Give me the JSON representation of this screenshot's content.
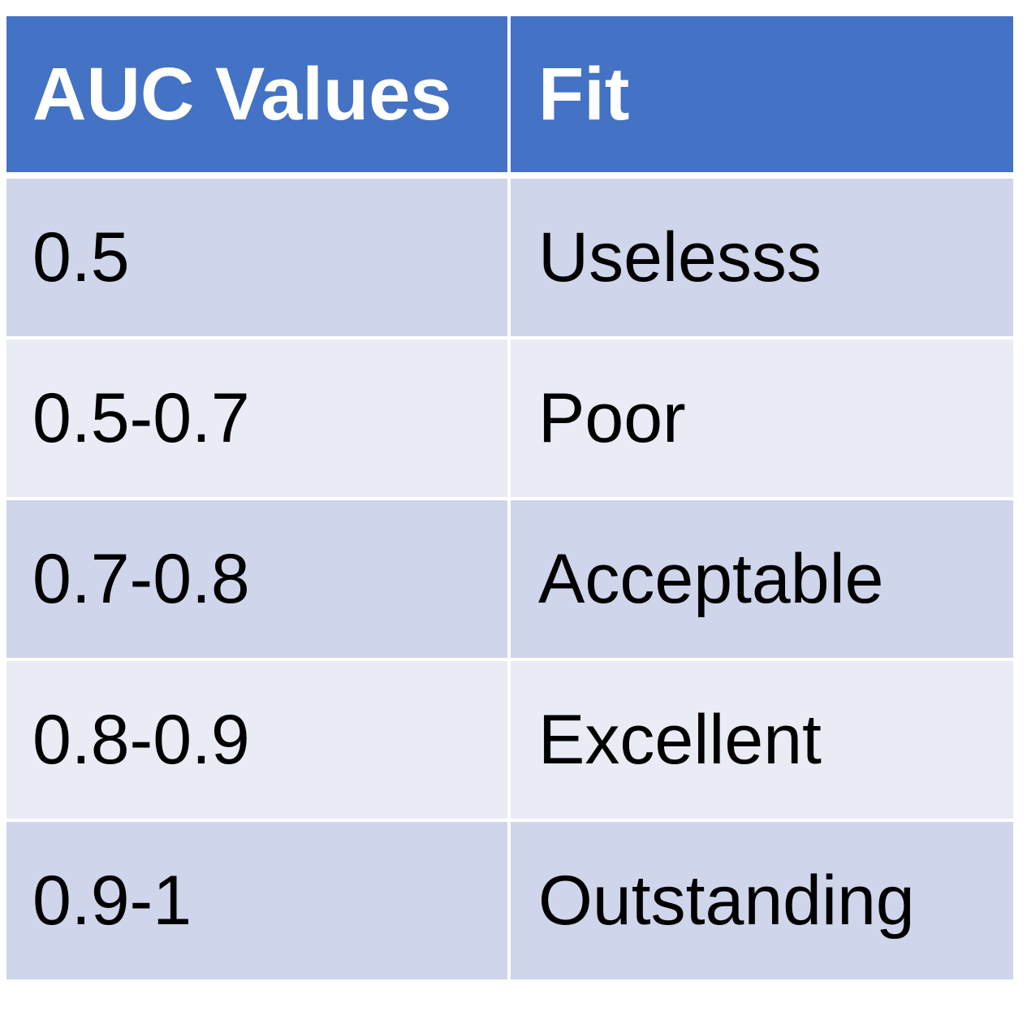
{
  "table": {
    "headers": {
      "auc": "AUC Values",
      "fit": "Fit"
    },
    "rows": [
      {
        "auc": "0.5",
        "fit": "Uselesss"
      },
      {
        "auc": "0.5-0.7",
        "fit": "Poor"
      },
      {
        "auc": "0.7-0.8",
        "fit": "Acceptable"
      },
      {
        "auc": "0.8-0.9",
        "fit": "Excellent"
      },
      {
        "auc": "0.9-1",
        "fit": "Outstanding"
      }
    ]
  },
  "colors": {
    "header_bg": "#4472c4",
    "row_odd_bg": "#cfd5ea",
    "row_even_bg": "#e9ebf5"
  }
}
